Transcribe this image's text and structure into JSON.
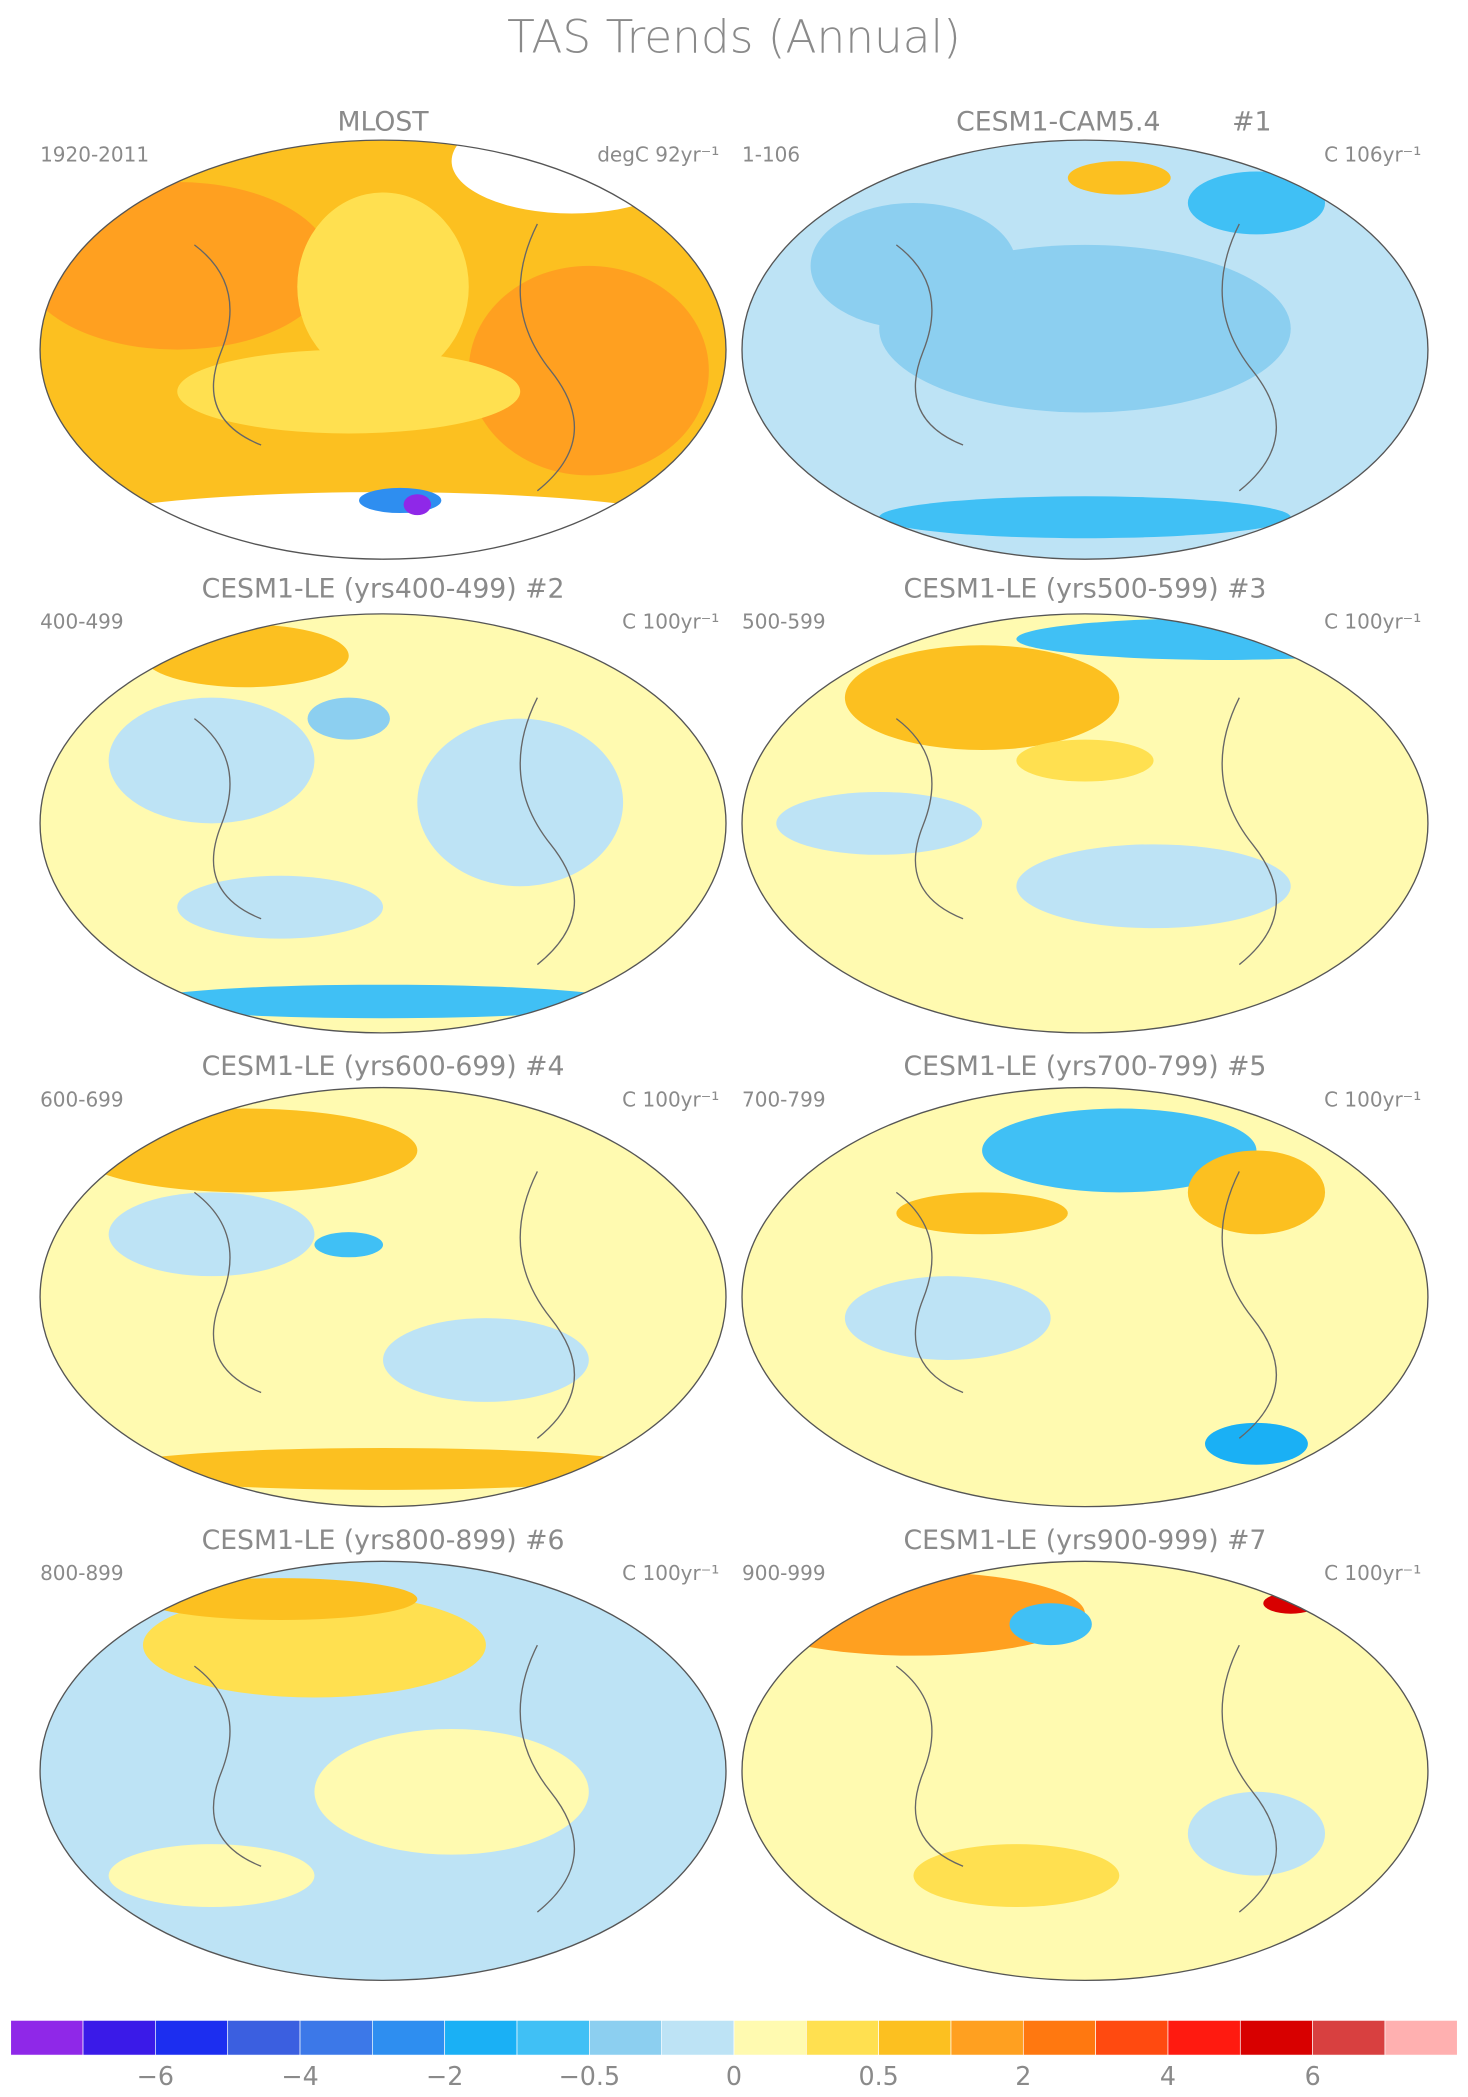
{
  "title": "TAS Trends (Annual)",
  "panels": [
    {
      "title": "MLOST",
      "period": "1920-2011",
      "units": "degC 92yr⁻¹"
    },
    {
      "title": "CESM1-CAM5.4",
      "number": "#1",
      "period": "1-106",
      "units": "C 106yr⁻¹"
    },
    {
      "title": "CESM1-LE (yrs400-499) #2",
      "period": "400-499",
      "units": "C 100yr⁻¹"
    },
    {
      "title": "CESM1-LE (yrs500-599) #3",
      "period": "500-599",
      "units": "C 100yr⁻¹"
    },
    {
      "title": "CESM1-LE (yrs600-699) #4",
      "period": "600-699",
      "units": "C 100yr⁻¹"
    },
    {
      "title": "CESM1-LE (yrs700-799) #5",
      "period": "700-799",
      "units": "C 100yr⁻¹"
    },
    {
      "title": "CESM1-LE (yrs800-899) #6",
      "period": "800-899",
      "units": "C 100yr⁻¹"
    },
    {
      "title": "CESM1-LE (yrs900-999) #7",
      "period": "900-999",
      "units": "C 100yr⁻¹"
    }
  ],
  "colorbar": {
    "colors": [
      "#8f28e8",
      "#3a1ae8",
      "#1c2ef0",
      "#3b5fe0",
      "#3c78e8",
      "#2e8ef0",
      "#1ab0f5",
      "#40c0f5",
      "#8ccff0",
      "#bde3f5",
      "#fffab0",
      "#ffe050",
      "#fcc020",
      "#ffa020",
      "#ff7810",
      "#ff4a10",
      "#ff1a10",
      "#d80000",
      "#d84040",
      "#ffb0b0"
    ],
    "labels": [
      "−6",
      "−4",
      "−2",
      "−0.5",
      "0",
      "0.5",
      "2",
      "4",
      "6"
    ]
  }
}
